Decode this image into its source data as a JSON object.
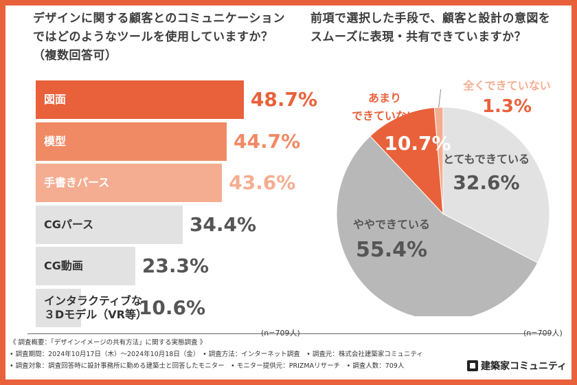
{
  "left": {
    "question_lines": [
      "デザインに関する顧客とのコミュニケーション",
      "ではどのようなツールを使用していますか？",
      "（複数回答可）"
    ],
    "n_note": "(n=709人)"
  },
  "right": {
    "question_lines": [
      "前項で選択した手段で、顧客と設計の意図を",
      "スムーズに表現・共有できていますか？"
    ],
    "n_note": "(n=709人)"
  },
  "chart_data": [
    {
      "type": "bar",
      "orientation": "horizontal",
      "categories": [
        [
          "図面"
        ],
        [
          "模型"
        ],
        [
          "手書きパース"
        ],
        [
          "CGパース"
        ],
        [
          "CG動画"
        ],
        [
          "インタラクティブな",
          "３Dモデル（VR等）"
        ]
      ],
      "values": [
        48.7,
        44.7,
        43.6,
        34.4,
        23.3,
        10.6
      ],
      "value_labels": [
        "48.7%",
        "44.7%",
        "43.6%",
        "34.4%",
        "23.3%",
        "10.6%"
      ],
      "bar_colors": [
        "#e8613a",
        "#f08a64",
        "#f5ad91",
        "#e2e2e2",
        "#e2e2e2",
        "#e2e2e2"
      ],
      "value_colors": [
        "#e8613a",
        "#f08a64",
        "#f5ad91",
        "#555555",
        "#555555",
        "#555555"
      ],
      "xlim": [
        0,
        100
      ]
    },
    {
      "type": "pie",
      "slices": [
        {
          "label": "とてもできている",
          "value": 32.6,
          "value_label": "32.6%",
          "color": "#e2e2e2",
          "text_color": "#555555"
        },
        {
          "label": "ややできている",
          "value": 55.4,
          "value_label": "55.4%",
          "color": "#b8b8b8",
          "text_color": "#555555"
        },
        {
          "label": "あまり|できていない",
          "value": 10.7,
          "value_label": "10.7%",
          "color": "#e8613a",
          "text_color": "#ffffff"
        },
        {
          "label": "全くできていない",
          "value": 1.3,
          "value_label": "1.3%",
          "color": "#f5ad91",
          "text_color": "#e8613a"
        }
      ]
    }
  ],
  "footer": {
    "lines": [
      "《 調査概要：「デザインイメージの共有方法」に関する実態調査 》",
      "• 調査期間：2024年10月17日（木）〜2024年10月18日（金）　• 調査方法：インターネット調査　• 調査元：株式会社建築家コミュニティ",
      "• 調査対象：調査回答時に設計事務所に勤める建築士と回答したモニター　• モニター提供元：PRIZMAリサーチ　• 調査人数：709人"
    ],
    "logo_text": "建築家コミュニティ"
  }
}
